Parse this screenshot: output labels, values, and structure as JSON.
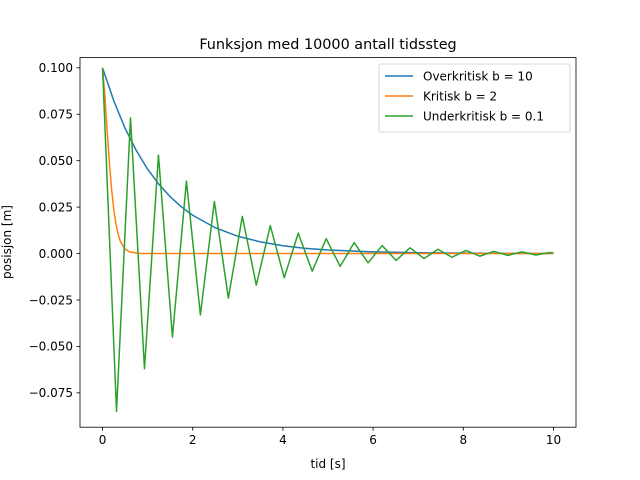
{
  "chart_data": {
    "type": "line",
    "title": "Funksjon med 10000 antall tidssteg",
    "xlabel": "tid [s]",
    "ylabel": "posisjon [m]",
    "xlim": [
      -0.5,
      10.5
    ],
    "ylim": [
      -0.0935,
      0.1055
    ],
    "xticks": [
      0,
      2,
      4,
      6,
      8,
      10
    ],
    "xtick_labels": [
      "0",
      "2",
      "4",
      "6",
      "8",
      "10"
    ],
    "yticks": [
      -0.075,
      -0.05,
      -0.025,
      0.0,
      0.025,
      0.05,
      0.075,
      0.1
    ],
    "ytick_labels": [
      "−0.075",
      "−0.050",
      "−0.025",
      "0.000",
      "0.025",
      "0.050",
      "0.075",
      "0.100"
    ],
    "grid": false,
    "legend_position": "top-right",
    "series": [
      {
        "name": "Overkritisk b = 10",
        "color": "#1f77b4",
        "x": [
          0,
          0.25,
          0.5,
          0.75,
          1,
          1.25,
          1.5,
          1.75,
          2,
          2.5,
          3,
          3.5,
          4,
          4.5,
          5,
          6,
          7,
          8,
          9,
          10
        ],
        "y": [
          0.1,
          0.0822,
          0.0674,
          0.0554,
          0.0454,
          0.0373,
          0.0306,
          0.0251,
          0.0206,
          0.0139,
          0.0093,
          0.0063,
          0.0042,
          0.0028,
          0.0019,
          0.0009,
          0.0004,
          0.0002,
          0.0001,
          0.0
        ]
      },
      {
        "name": "Kritisk b = 2",
        "color": "#ff7f0e",
        "x": [
          0,
          0.05,
          0.1,
          0.15,
          0.2,
          0.25,
          0.3,
          0.35,
          0.4,
          0.5,
          0.6,
          0.8,
          1.0,
          1.5,
          2,
          4,
          6,
          8,
          10
        ],
        "y": [
          0.1,
          0.0855,
          0.0671,
          0.0495,
          0.0348,
          0.0235,
          0.0155,
          0.01,
          0.0063,
          0.0024,
          0.0009,
          0.0001,
          0.0,
          0.0,
          0.0,
          0.0,
          0.0,
          0.0,
          0.0
        ]
      },
      {
        "name": "Underkritisk b = 0.1",
        "color": "#2ca02c",
        "x": [
          0,
          0.31,
          0.62,
          0.93,
          1.24,
          1.55,
          1.86,
          2.17,
          2.48,
          2.79,
          3.1,
          3.41,
          3.72,
          4.03,
          4.34,
          4.65,
          4.96,
          5.27,
          5.58,
          5.89,
          6.2,
          6.51,
          6.82,
          7.13,
          7.44,
          7.75,
          8.06,
          8.37,
          8.68,
          8.99,
          9.3,
          9.61,
          9.92,
          10.0
        ],
        "y": [
          0.1,
          -0.085,
          0.073,
          -0.062,
          0.053,
          -0.045,
          0.039,
          -0.033,
          0.028,
          -0.024,
          0.02,
          -0.017,
          0.015,
          -0.013,
          0.011,
          -0.0095,
          0.008,
          -0.0069,
          0.0059,
          -0.005,
          0.0043,
          -0.0037,
          0.0031,
          -0.0027,
          0.0023,
          -0.002,
          0.0017,
          -0.0014,
          0.0012,
          -0.001,
          0.0009,
          -0.0008,
          0.0006,
          0.0003
        ]
      }
    ]
  }
}
